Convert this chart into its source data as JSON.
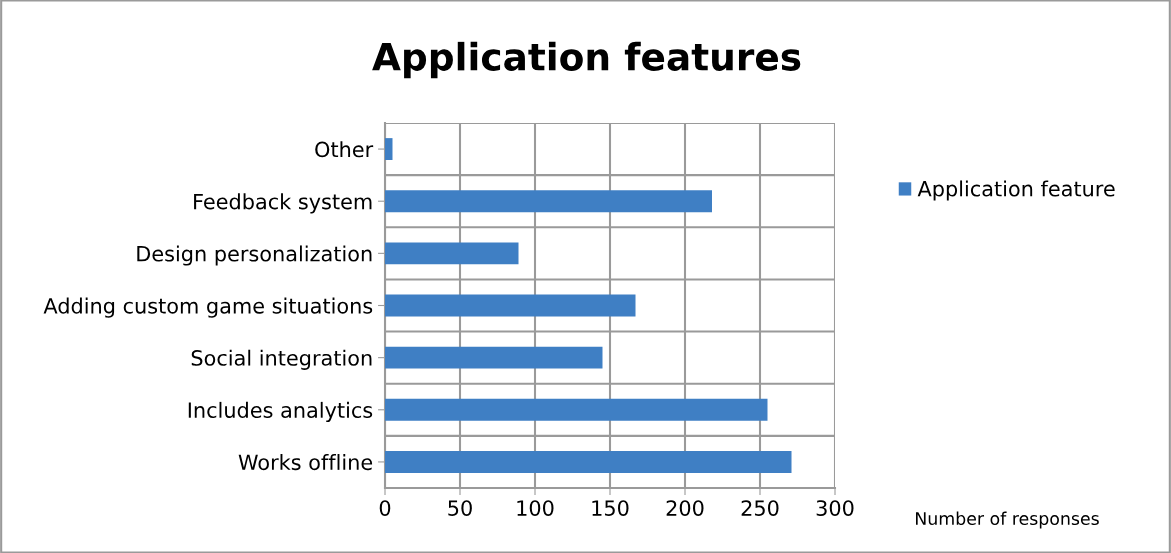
{
  "chart_data": {
    "type": "bar",
    "orientation": "horizontal",
    "title": "Application features",
    "xlabel": "Number of responses",
    "categories": [
      "Other",
      "Feedback system",
      "Design personalization",
      "Adding custom game situations",
      "Social integration",
      "Includes analytics",
      "Works offline"
    ],
    "series": [
      {
        "name": "Application feature",
        "color": "#3f7fc4",
        "values": [
          5,
          218,
          89,
          167,
          145,
          255,
          271
        ]
      }
    ],
    "xlim": [
      0,
      300
    ],
    "xticks": [
      0,
      50,
      100,
      150,
      200,
      250,
      300
    ],
    "grid": true,
    "legend": "right"
  }
}
